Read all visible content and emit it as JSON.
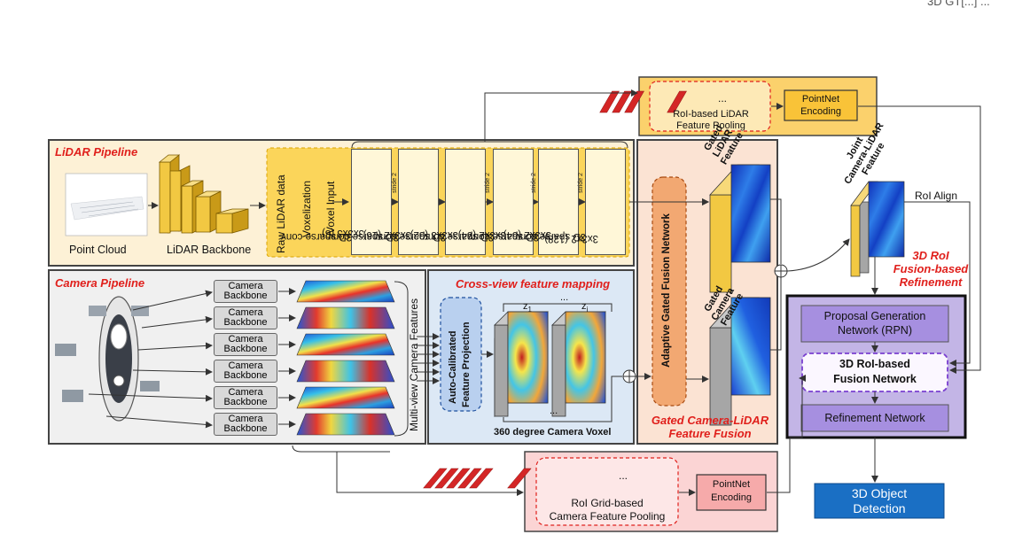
{
  "top_right_fragment": "3D GT[...] ...",
  "lidar_pipeline": {
    "title": "LiDAR Pipeline",
    "point_cloud_label": "Point Cloud",
    "backbone_label": "LiDAR Backbone",
    "raw_lidar": "Raw LiDAR data",
    "voxelization": "Voxelization",
    "voxel_input": "Voxel Input",
    "convs": [
      [
        "3D sparse conv",
        "3x3x3 (8)"
      ],
      [
        "3D sparse conv",
        "3x3x2 (16)"
      ],
      [
        "3D sparse conv",
        "3x3x3 (32)"
      ],
      [
        "3D sparse conv",
        "3x3x2 (64)"
      ],
      [
        "3D sparse conv",
        "3x3x2 (64)"
      ],
      [
        "3D sparse conv",
        "3x3x2 (128)"
      ]
    ],
    "stride_label": "stride 2"
  },
  "roi_lidar_pooling": {
    "label_line1": "RoI-based LiDAR",
    "label_line2": "Feature Pooling",
    "dots": "...",
    "encoding_line1": "PointNet",
    "encoding_line2": "Encoding"
  },
  "camera_pipeline": {
    "title": "Camera Pipeline",
    "backbone_line1": "Camera",
    "backbone_line2": "Backbone",
    "multiview_label": "Multi-view Camera Features"
  },
  "cross_view": {
    "title": "Cross-view feature mapping",
    "projection_line1": "Auto-Calibrated",
    "projection_line2": "Feature Projection",
    "z1": "z",
    "zi": "z",
    "sub1": "1",
    "subi": "i",
    "dots": "...",
    "voxel_label": "360 degree Camera Voxel"
  },
  "gated_fusion": {
    "network_label": "Adaptive Gated Fusion Network",
    "lidar_feature": [
      "Gated",
      "LiDAR",
      "Feature"
    ],
    "camera_feature": [
      "Gated",
      "Camera",
      "Feature"
    ],
    "title_line1": "Gated Camera-LiDAR",
    "title_line2": "Feature Fusion"
  },
  "joint_feature": {
    "label": [
      "Joint",
      "Camera-LiDAR",
      "Feature"
    ],
    "roi_align": "RoI Align",
    "refinement_title": [
      "3D RoI",
      "Fusion-based",
      "Refinement"
    ]
  },
  "refinement_block": {
    "rpn_line1": "Proposal Generation",
    "rpn_line2": "Network (RPN)",
    "fusion_line1": "3D RoI-based",
    "fusion_line2": "Fusion Network",
    "refinement": "Refinement Network"
  },
  "output": {
    "line1": "3D Object",
    "line2": "Detection"
  },
  "roi_grid_pooling": {
    "label_line1": "RoI Grid-based",
    "label_line2": "Camera Feature Pooling",
    "dots": "...",
    "encoding_line1": "PointNet",
    "encoding_line2": "Encoding"
  },
  "colors": {
    "lidar_bg": "#fdf1d6",
    "camera_bg": "#f0f0f0",
    "crossview_bg": "#dce8f5",
    "gated_bg": "#fbe3d3",
    "roi_lidar_bg": "#fbd16c",
    "roi_grid_bg": "#fbd4d4",
    "refine_bg": "#c3b5e6",
    "output_blue": "#1a6fc4",
    "accent_red": "#e0201c"
  }
}
